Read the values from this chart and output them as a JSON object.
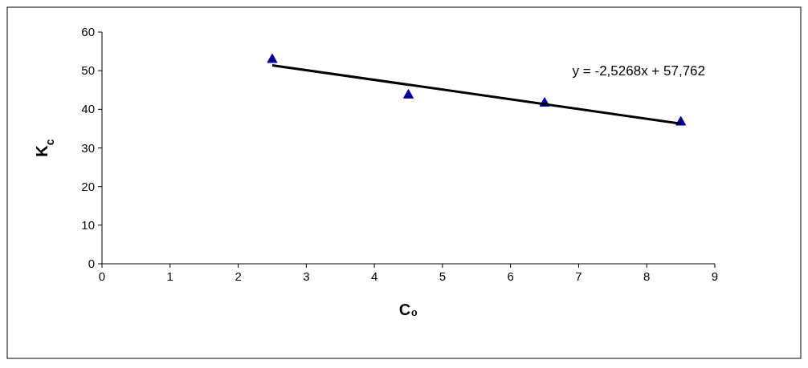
{
  "chart_data": {
    "type": "scatter",
    "xlabel": "C₀",
    "ylabel": "K$_{c}$",
    "marker": "triangle",
    "grid": false,
    "xlim": [
      0,
      9
    ],
    "xticks": [
      0,
      1,
      2,
      3,
      4,
      5,
      6,
      7,
      8,
      9
    ],
    "ylim": [
      0,
      60
    ],
    "yticks": [
      0,
      10,
      20,
      30,
      40,
      50,
      60
    ],
    "x": [
      2.5,
      4.5,
      6.5,
      8.5
    ],
    "series": [
      {
        "color": "#000080",
        "values": [
          53.1,
          43.9,
          41.8,
          36.9
        ]
      },
      {
        "type": "line",
        "marker": "none",
        "color": "#000000",
        "x": [
          2.5,
          8.5
        ],
        "values": [
          51.4,
          36.3
        ]
      }
    ],
    "annotations": [
      "y = -2,5268x + 57,762"
    ]
  }
}
